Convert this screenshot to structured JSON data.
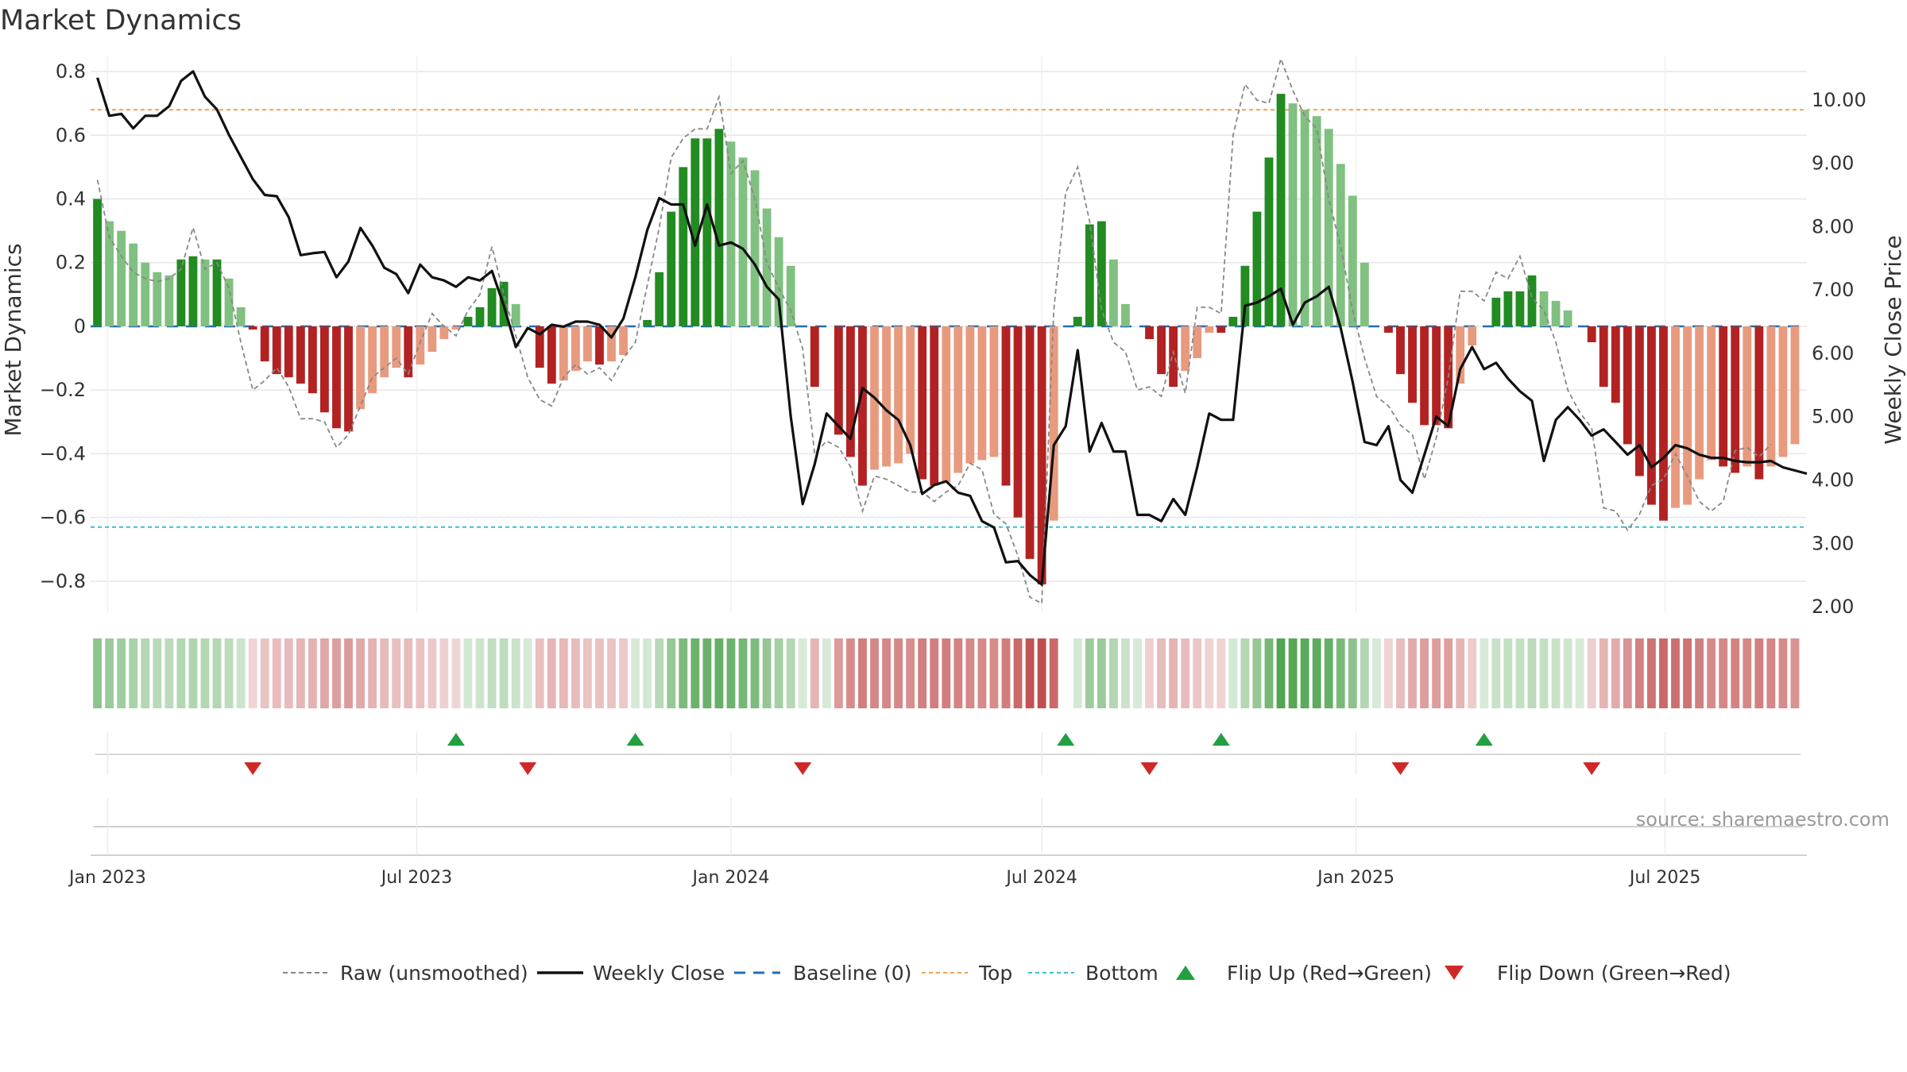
{
  "chart_data": {
    "type": "bar",
    "title": "Market Dynamics",
    "ylabel": "Market Dynamics",
    "ylabel_right": "Weekly Close Price",
    "ylim": [
      -0.9,
      0.85
    ],
    "ylim_right": [
      1.9,
      10.7
    ],
    "yticks": [
      0.8,
      0.6,
      0.4,
      0.2,
      0,
      -0.2,
      -0.4,
      -0.6,
      -0.8
    ],
    "ytick_labels": [
      "0.8",
      "0.6",
      "0.4",
      "0.2",
      "0",
      "−0.2",
      "−0.4",
      "−0.6",
      "−0.8"
    ],
    "yticks_right": [
      10,
      9,
      8,
      7,
      6,
      5,
      4,
      3,
      2
    ],
    "ytick_labels_right": [
      "10.00",
      "9.00",
      "8.00",
      "7.00",
      "6.00",
      "5.00",
      "4.00",
      "3.00",
      "2.00"
    ],
    "xlim": [
      "2022-12-22",
      "2025-09-22"
    ],
    "xticks": [
      "2023-01-01",
      "2023-07-01",
      "2024-01-01",
      "2024-07-01",
      "2025-01-01",
      "2025-07-01"
    ],
    "xtick_labels": [
      "Jan 2023",
      "Jul 2023",
      "Jan 2024",
      "Jul 2024",
      "Jan 2025",
      "Jul 2025"
    ],
    "grid": true,
    "legend_position": "bottom-center",
    "series_start": "2022-12-26",
    "interval_days": 7,
    "missing_weeks": [
      81
    ],
    "top_level": 0.68,
    "bottom_level": -0.63,
    "baseline": 0,
    "flip_up_dates": [
      "2023-07-24",
      "2023-11-06",
      "2024-07-15",
      "2024-10-14",
      "2025-03-17"
    ],
    "flip_down_dates": [
      "2023-03-27",
      "2023-09-04",
      "2024-02-12",
      "2024-09-02",
      "2025-01-27",
      "2025-05-19"
    ],
    "source_label": "source: sharemaestro.com",
    "colors": {
      "green_strong": "#228b22",
      "green_light": "#80c080",
      "red_strong": "#b22222",
      "red_light": "#e89a7f",
      "close_line": "#111111",
      "raw_line": "#888888",
      "baseline": "#1f6fb0",
      "top": "#f0a050",
      "bottom": "#36c0d0",
      "flip_up": "#22a040",
      "flip_down": "#d02828",
      "grid": "#e6e6e6",
      "text": "#333333"
    },
    "legend": [
      {
        "label": "Raw (unsmoothed)",
        "style": "dashed-gray"
      },
      {
        "label": "Weekly Close",
        "style": "solid-black"
      },
      {
        "label": "Baseline (0)",
        "style": "dashed-blue"
      },
      {
        "label": "Top",
        "style": "dotted-orange"
      },
      {
        "label": "Bottom",
        "style": "dotted-cyan"
      },
      {
        "label": "Flip Up (Red→Green)",
        "style": "triangle-up-green"
      },
      {
        "label": "Flip Down (Green→Red)",
        "style": "triangle-down-red"
      }
    ],
    "series": [
      {
        "name": "Market Dynamics",
        "values": [
          0.4,
          0.33,
          0.3,
          0.26,
          0.2,
          0.17,
          0.16,
          0.21,
          0.22,
          0.21,
          0.21,
          0.15,
          0.06,
          -0.01,
          -0.11,
          -0.15,
          -0.16,
          -0.18,
          -0.21,
          -0.27,
          -0.32,
          -0.33,
          -0.26,
          -0.21,
          -0.16,
          -0.13,
          -0.16,
          -0.12,
          -0.08,
          -0.04,
          -0.01,
          0.03,
          0.06,
          0.12,
          0.14,
          0.07,
          0.0,
          -0.13,
          -0.18,
          -0.17,
          -0.14,
          -0.11,
          -0.12,
          -0.11,
          -0.09,
          0.0,
          0.02,
          0.17,
          0.36,
          0.5,
          0.59,
          0.59,
          0.62,
          0.58,
          0.53,
          0.49,
          0.37,
          0.28,
          0.19,
          0.0,
          -0.19,
          0.0,
          -0.34,
          -0.41,
          -0.5,
          -0.45,
          -0.44,
          -0.43,
          -0.4,
          -0.48,
          -0.5,
          -0.49,
          -0.46,
          -0.43,
          -0.42,
          -0.41,
          -0.5,
          -0.6,
          -0.73,
          -0.81,
          -0.61,
          -0.32,
          0.03,
          0.32,
          0.33,
          0.21,
          0.07,
          0.0,
          -0.04,
          -0.15,
          -0.19,
          -0.14,
          -0.1,
          -0.02,
          -0.02,
          0.03,
          0.19,
          0.36,
          0.53,
          0.73,
          0.7,
          0.68,
          0.66,
          0.62,
          0.51,
          0.41,
          0.2,
          0.0,
          -0.02,
          -0.15,
          -0.24,
          -0.31,
          -0.31,
          -0.32,
          -0.18,
          -0.06,
          0.0,
          0.09,
          0.11,
          0.11,
          0.16,
          0.11,
          0.08,
          0.05,
          0.0,
          -0.05,
          -0.19,
          -0.24,
          -0.37,
          -0.47,
          -0.56,
          -0.61,
          -0.57,
          -0.56,
          -0.48,
          -0.42,
          -0.44,
          -0.46,
          -0.44,
          -0.48,
          -0.44,
          -0.41,
          -0.37
        ]
      },
      {
        "name": "Raw (unsmoothed)",
        "values": [
          0.46,
          0.28,
          0.22,
          0.17,
          0.15,
          0.14,
          0.15,
          0.18,
          0.31,
          0.18,
          0.2,
          0.12,
          -0.05,
          -0.2,
          -0.17,
          -0.13,
          -0.19,
          -0.29,
          -0.29,
          -0.3,
          -0.38,
          -0.34,
          -0.25,
          -0.16,
          -0.13,
          -0.1,
          -0.15,
          -0.05,
          0.04,
          0.0,
          -0.03,
          0.05,
          0.1,
          0.25,
          0.1,
          -0.03,
          -0.16,
          -0.23,
          -0.25,
          -0.16,
          -0.12,
          -0.15,
          -0.13,
          -0.17,
          -0.1,
          -0.05,
          0.13,
          0.31,
          0.53,
          0.59,
          0.62,
          0.62,
          0.72,
          0.48,
          0.52,
          0.4,
          0.2,
          0.12,
          0.05,
          -0.07,
          -0.4,
          -0.36,
          -0.38,
          -0.44,
          -0.58,
          -0.47,
          -0.48,
          -0.5,
          -0.52,
          -0.52,
          -0.55,
          -0.52,
          -0.5,
          -0.43,
          -0.45,
          -0.59,
          -0.62,
          -0.72,
          -0.85,
          -0.87,
          0.05,
          0.42,
          0.5,
          0.33,
          0.05,
          -0.05,
          -0.08,
          -0.2,
          -0.19,
          -0.22,
          -0.08,
          -0.21,
          0.06,
          0.06,
          0.04,
          0.6,
          0.76,
          0.71,
          0.7,
          0.84,
          0.74,
          0.66,
          0.62,
          0.4,
          0.25,
          0.05,
          -0.1,
          -0.22,
          -0.25,
          -0.31,
          -0.34,
          -0.48,
          -0.35,
          -0.16,
          0.11,
          0.11,
          0.08,
          0.17,
          0.15,
          0.22,
          0.09,
          0.05,
          -0.05,
          -0.2,
          -0.27,
          -0.32,
          -0.57,
          -0.58,
          -0.64,
          -0.59,
          -0.5,
          -0.48,
          -0.4,
          -0.47,
          -0.55,
          -0.58,
          -0.55,
          -0.39,
          -0.38,
          -0.41,
          -0.37
        ]
      },
      {
        "name": "Weekly Close",
        "axis": "right",
        "values": [
          10.35,
          9.75,
          9.78,
          9.55,
          9.75,
          9.75,
          9.9,
          10.3,
          10.45,
          10.05,
          9.85,
          9.45,
          9.1,
          8.75,
          8.5,
          8.48,
          8.15,
          7.55,
          7.58,
          7.6,
          7.2,
          7.45,
          7.98,
          7.7,
          7.35,
          7.25,
          6.95,
          7.4,
          7.2,
          7.15,
          7.05,
          7.2,
          7.15,
          7.3,
          6.75,
          6.1,
          6.4,
          6.3,
          6.45,
          6.42,
          6.5,
          6.5,
          6.45,
          6.25,
          6.55,
          7.2,
          7.95,
          8.45,
          8.35,
          8.35,
          7.7,
          8.35,
          7.7,
          7.75,
          7.65,
          7.4,
          7.05,
          6.85,
          5.0,
          3.62,
          4.25,
          5.05,
          4.85,
          4.65,
          5.45,
          5.3,
          5.1,
          4.95,
          4.55,
          3.78,
          3.92,
          3.98,
          3.8,
          3.75,
          3.35,
          3.25,
          2.7,
          2.72,
          2.5,
          2.35,
          4.55,
          4.85,
          6.05,
          4.45,
          4.9,
          4.45,
          4.45,
          3.45,
          3.45,
          3.35,
          3.7,
          3.45,
          4.2,
          5.05,
          4.95,
          4.95,
          6.75,
          6.8,
          6.9,
          7.02,
          6.45,
          6.8,
          6.9,
          7.05,
          6.4,
          5.55,
          4.6,
          4.55,
          4.85,
          4.0,
          3.8,
          4.4,
          5.0,
          4.85,
          5.75,
          6.1,
          5.75,
          5.85,
          5.6,
          5.4,
          5.25,
          4.3,
          4.95,
          5.15,
          4.95,
          4.7,
          4.8,
          4.6,
          4.4,
          4.55,
          4.2,
          4.35,
          4.55,
          4.5,
          4.4,
          4.35,
          4.35,
          4.3,
          4.28,
          4.28,
          4.3,
          4.2,
          4.15,
          4.1
        ]
      }
    ]
  }
}
